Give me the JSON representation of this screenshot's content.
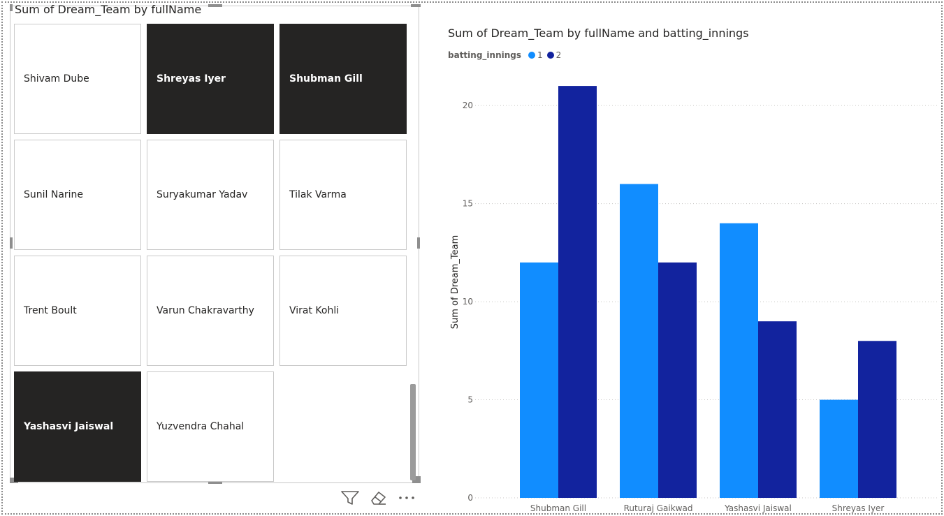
{
  "slicer": {
    "title": "Sum of Dream_Team by fullName",
    "tiles": [
      {
        "label": "Shivam Dube",
        "selected": false
      },
      {
        "label": "Shreyas Iyer",
        "selected": true
      },
      {
        "label": "Shubman Gill",
        "selected": true
      },
      {
        "label": "Sunil Narine",
        "selected": false
      },
      {
        "label": "Suryakumar Yadav",
        "selected": false
      },
      {
        "label": "Tilak Varma",
        "selected": false
      },
      {
        "label": "Trent Boult",
        "selected": false
      },
      {
        "label": "Varun Chakravarthy",
        "selected": false
      },
      {
        "label": "Virat Kohli",
        "selected": false
      },
      {
        "label": "Yashasvi Jaiswal",
        "selected": true
      },
      {
        "label": "Yuzvendra Chahal",
        "selected": false
      }
    ],
    "toolbar_icons": [
      "filter-icon",
      "eraser-icon",
      "more-options-icon"
    ]
  },
  "chart": {
    "title": "Sum of Dream_Team by fullName and batting_innings",
    "legend_title": "batting_innings",
    "ylabel": "Sum of Dream_Team"
  },
  "chart_data": {
    "type": "bar",
    "title": "Sum of Dream_Team by fullName and batting_innings",
    "xlabel": "",
    "ylabel": "Sum of Dream_Team",
    "categories": [
      "Shubman Gill",
      "Ruturaj Gaikwad",
      "Yashasvi Jaiswal",
      "Shreyas Iyer"
    ],
    "series": [
      {
        "name": "1",
        "color": "#118DFF",
        "values": [
          12,
          16,
          14,
          5
        ]
      },
      {
        "name": "2",
        "color": "#12239E",
        "values": [
          21,
          12,
          9,
          8
        ]
      }
    ],
    "ylim": [
      0,
      22
    ],
    "yticks": [
      0,
      5,
      10,
      15,
      20
    ],
    "grid": true,
    "legend_position": "top-left"
  }
}
